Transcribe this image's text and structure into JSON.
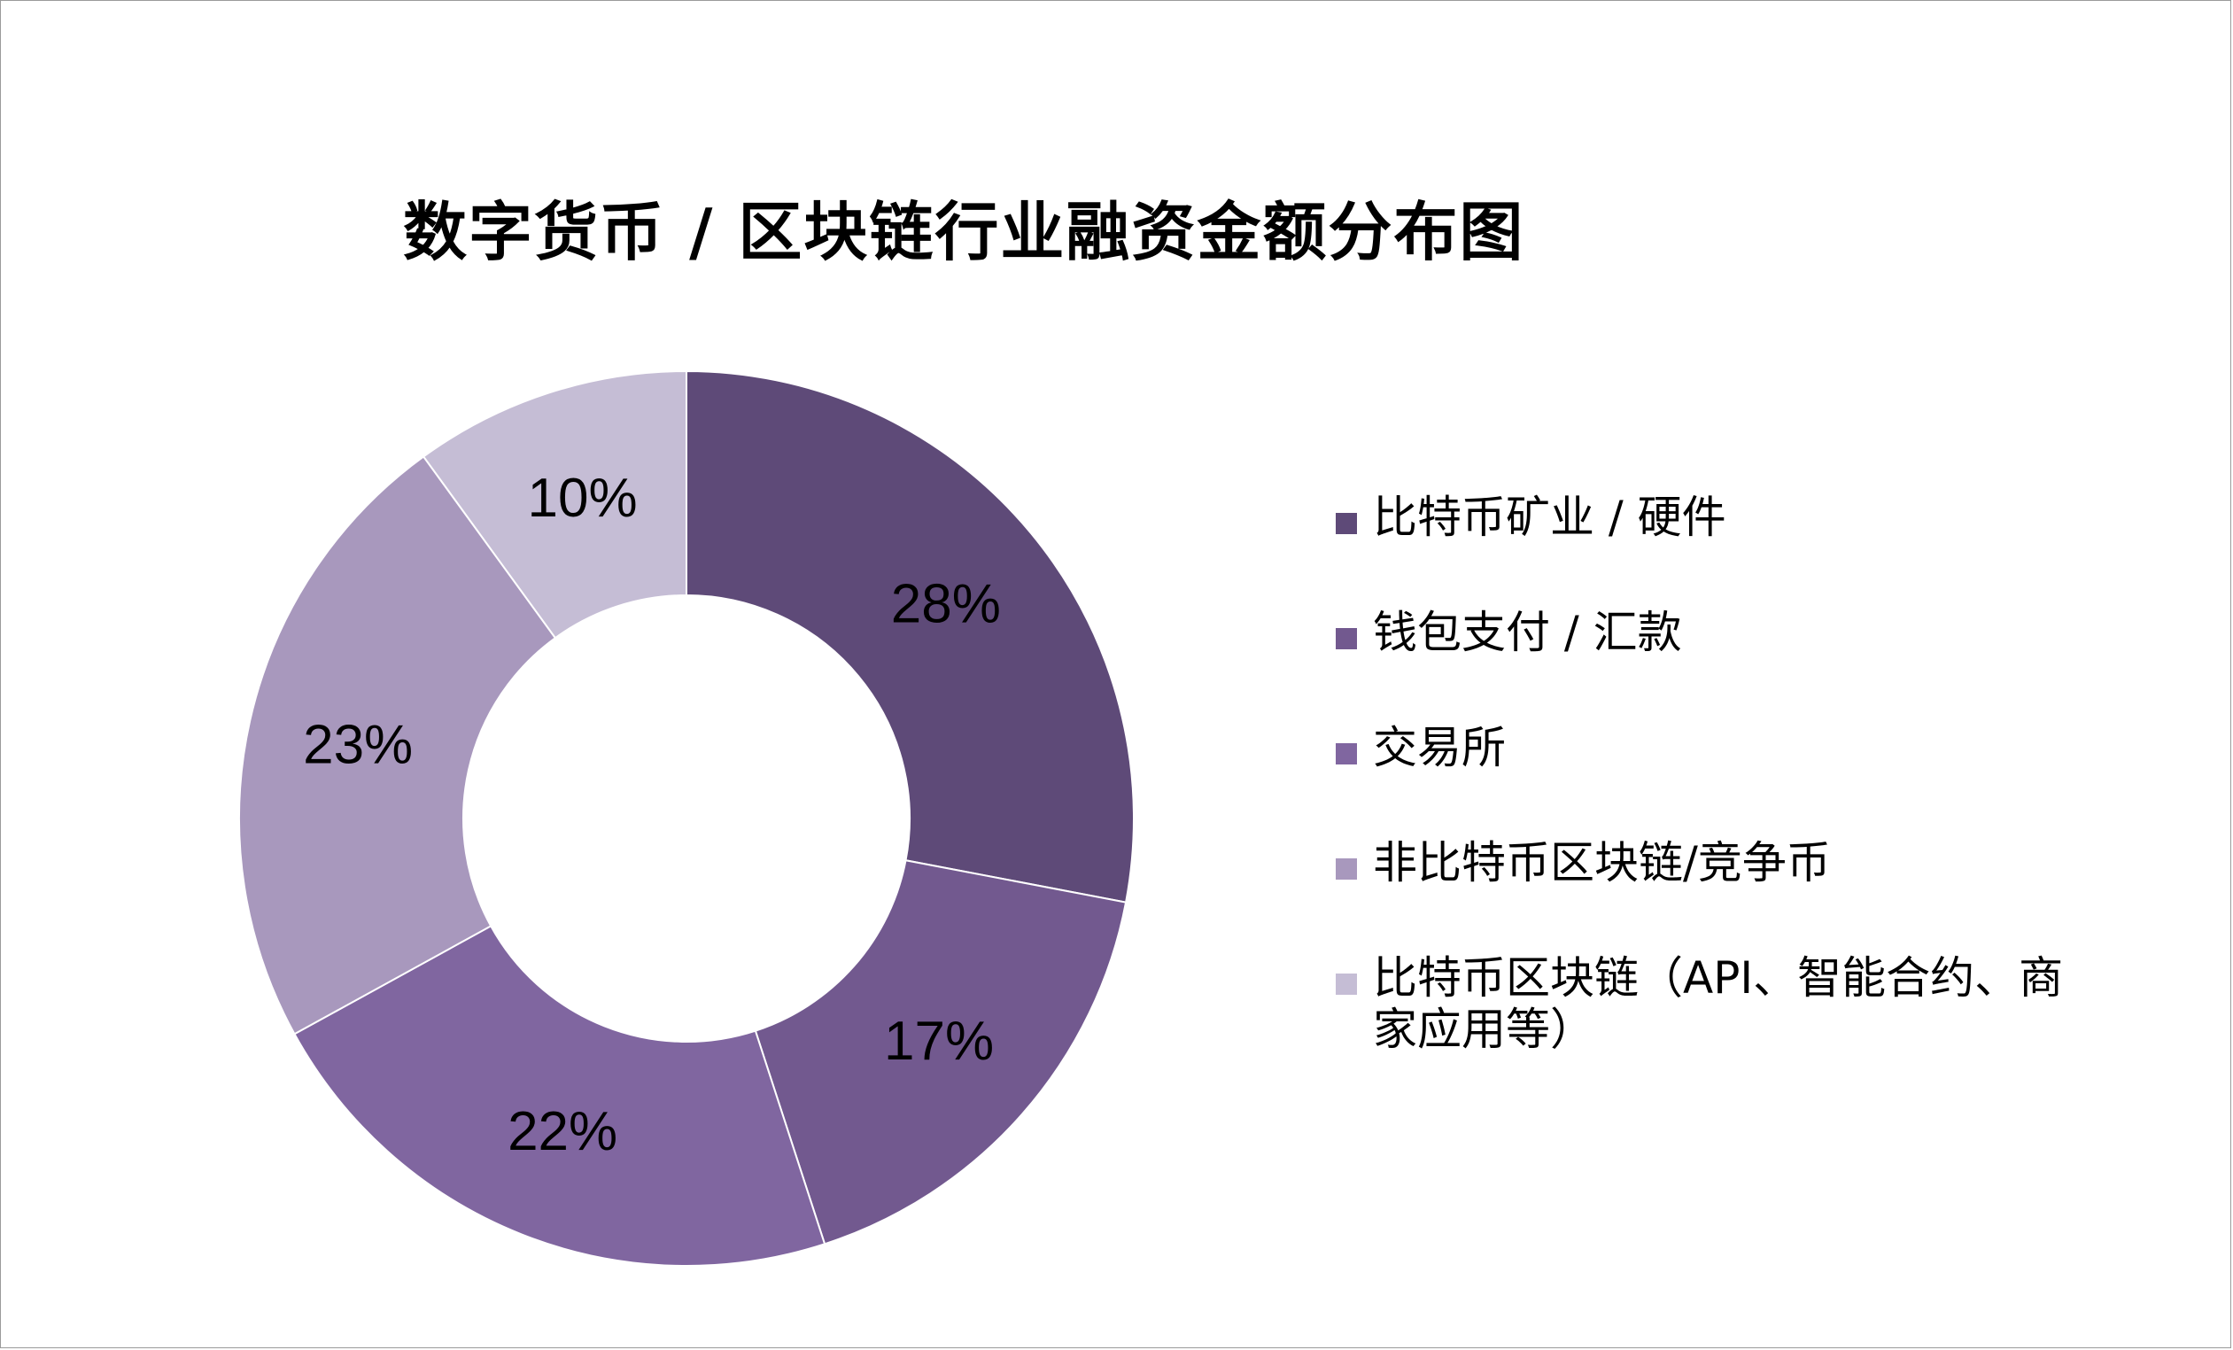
{
  "title": "数字货币 / 区块链行业融资金额分布图",
  "chart_data": {
    "type": "pie",
    "donut": true,
    "title": "数字货币 / 区块链行业融资金额分布图",
    "categories": [
      "比特币矿业 / 硬件",
      "钱包支付 / 汇款",
      "交易所",
      "非比特币区块链/竞争币",
      "比特币区块链（API、智能合约、商家应用等）"
    ],
    "values": [
      28,
      17,
      22,
      23,
      10
    ],
    "labels": [
      "28%",
      "17%",
      "22%",
      "23%",
      "10%"
    ],
    "colors": [
      "#5e4a78",
      "#72598f",
      "#8066a0",
      "#a898bd",
      "#c5bdd5"
    ],
    "legend_position": "right"
  }
}
